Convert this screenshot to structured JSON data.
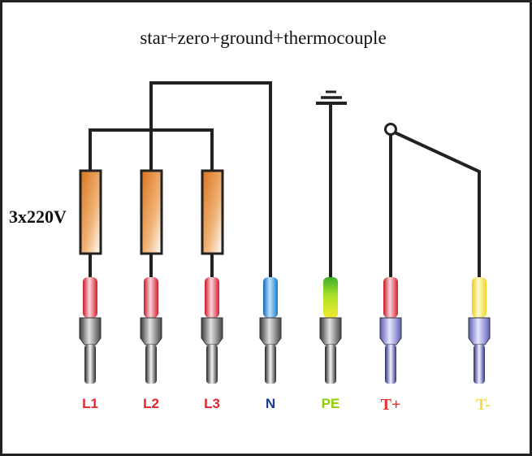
{
  "diagram": {
    "title": "star+zero+ground+thermocouple",
    "voltage_label": "3x220V",
    "terminals": [
      {
        "id": "L1",
        "label": "L1",
        "color": "#e0242e",
        "sleeve": "red",
        "plug": "gray"
      },
      {
        "id": "L2",
        "label": "L2",
        "color": "#e0242e",
        "sleeve": "red",
        "plug": "gray"
      },
      {
        "id": "L3",
        "label": "L3",
        "color": "#e0242e",
        "sleeve": "red",
        "plug": "gray"
      },
      {
        "id": "N",
        "label": "N",
        "color": "#1a3e9c",
        "sleeve": "blue",
        "plug": "gray"
      },
      {
        "id": "PE",
        "label": "PE",
        "color": "#8cd000",
        "sleeve": "green-yellow",
        "plug": "gray"
      },
      {
        "id": "Tplus",
        "label": "T+",
        "color": "#ee2d2d",
        "sleeve": "red",
        "plug": "lavender"
      },
      {
        "id": "Tminus",
        "label": "T-",
        "color": "#f5e04a",
        "sleeve": "yellow",
        "plug": "lavender"
      }
    ],
    "heaters": [
      "heater-1",
      "heater-2",
      "heater-3"
    ],
    "symbols": [
      "ground-symbol",
      "thermocouple-switch"
    ]
  }
}
